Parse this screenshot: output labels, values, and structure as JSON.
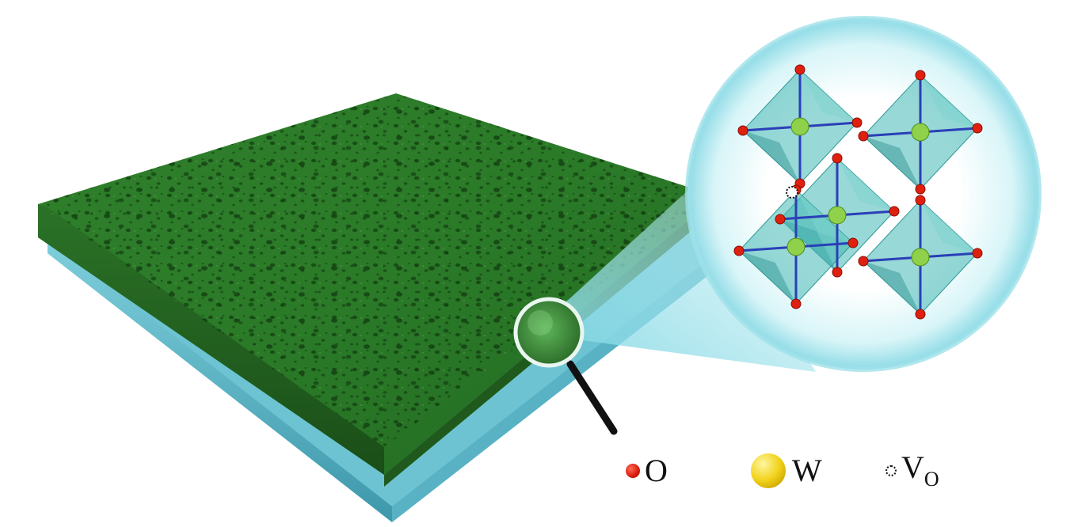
{
  "legend": {
    "oxygen": {
      "label": "O",
      "icon": "red-sphere-icon",
      "color": "#e0200e"
    },
    "tungsten": {
      "label": "W",
      "icon": "yellow-sphere-icon",
      "color": "#f1d21a"
    },
    "vacancy": {
      "label": "V",
      "sub": "O",
      "icon": "dotted-circle-icon"
    }
  },
  "colors": {
    "film": "#2f7d2a",
    "film_dark": "#1b4e17",
    "substrate": "#5fb7c9",
    "bubble": "#bfeef5",
    "octahedron": "#43b8b5",
    "bond": "#2a3fb8"
  }
}
